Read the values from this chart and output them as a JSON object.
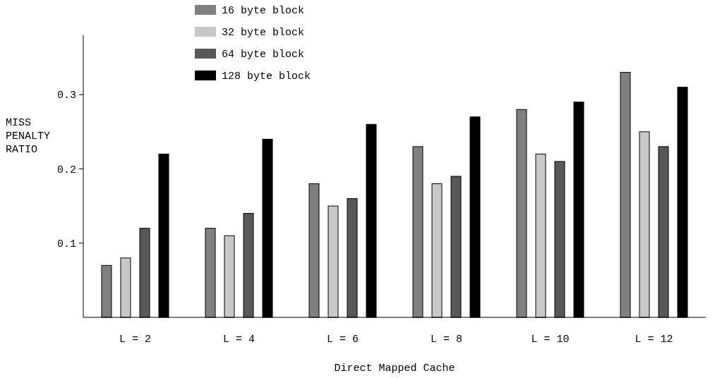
{
  "chart_data": {
    "type": "bar",
    "xlabel": "Direct Mapped Cache",
    "ylabel": "MISS PENALTY RATIO",
    "categories": [
      "L = 2",
      "L = 4",
      "L = 6",
      "L = 8",
      "L = 10",
      "L = 12"
    ],
    "series": [
      {
        "name": "16 byte block",
        "color": "#808080",
        "values": [
          0.07,
          0.12,
          0.18,
          0.23,
          0.28,
          0.33
        ]
      },
      {
        "name": "32 byte block",
        "color": "#c8c8c8",
        "values": [
          0.08,
          0.11,
          0.15,
          0.18,
          0.22,
          0.25
        ]
      },
      {
        "name": "64 byte block",
        "color": "#585858",
        "values": [
          0.12,
          0.14,
          0.16,
          0.19,
          0.21,
          0.23
        ]
      },
      {
        "name": "128 byte block",
        "color": "#000000",
        "values": [
          0.22,
          0.24,
          0.26,
          0.27,
          0.29,
          0.31
        ]
      }
    ],
    "ylim": [
      0,
      0.38
    ],
    "yticks": [
      0.1,
      0.2,
      0.3
    ],
    "legend": "top left",
    "grid": false
  }
}
